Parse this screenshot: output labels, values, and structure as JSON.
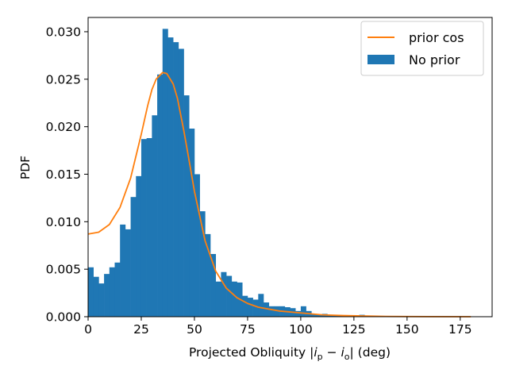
{
  "chart_data": {
    "type": "bar",
    "xlabel": "Projected Obliquity |i_p − i_o| (deg)",
    "xlabel_parts": {
      "pre": "Projected Obliquity |",
      "i1": "i",
      "s1": "p",
      "minus": " − ",
      "i2": "i",
      "s2": "o",
      "post": "| (deg)"
    },
    "ylabel": "PDF",
    "xlim": [
      0,
      190
    ],
    "ylim": [
      0,
      0.0315
    ],
    "xticks": [
      0,
      25,
      50,
      75,
      100,
      125,
      150,
      175
    ],
    "xtick_labels": [
      "0",
      "25",
      "50",
      "75",
      "100",
      "125",
      "150",
      "175"
    ],
    "yticks": [
      0.0,
      0.005,
      0.01,
      0.015,
      0.02,
      0.025,
      0.03
    ],
    "ytick_labels": [
      "0.000",
      "0.005",
      "0.010",
      "0.015",
      "0.020",
      "0.025",
      "0.030"
    ],
    "legend_position": "upper-right",
    "histogram": {
      "name": "No prior",
      "color": "#1f77b4",
      "bin_width": 2.5,
      "x0": 0,
      "values": [
        0.0052,
        0.0042,
        0.0035,
        0.0045,
        0.0052,
        0.0057,
        0.0097,
        0.0092,
        0.0126,
        0.0148,
        0.0187,
        0.0188,
        0.0212,
        0.0255,
        0.0303,
        0.0294,
        0.0289,
        0.0282,
        0.0233,
        0.0198,
        0.015,
        0.0111,
        0.0087,
        0.0066,
        0.0037,
        0.0047,
        0.0043,
        0.0037,
        0.0036,
        0.0022,
        0.002,
        0.0018,
        0.0024,
        0.0015,
        0.0011,
        0.0011,
        0.0011,
        0.001,
        0.0009,
        0.0006,
        0.0011,
        0.0006,
        0.0003,
        0.0002,
        0.0003,
        0.0002,
        0.0002,
        0.0001,
        0.0001,
        0.0001,
        0.0001,
        0.0002,
        0.0001
      ]
    },
    "curve": {
      "name": "prior cos",
      "color": "#ff7f0e",
      "x": [
        0,
        5,
        10,
        15,
        20,
        25,
        28,
        30,
        32,
        35,
        37,
        40,
        42,
        45,
        48,
        50,
        55,
        60,
        65,
        70,
        75,
        80,
        90,
        100,
        110,
        120,
        140,
        160,
        180
      ],
      "y": [
        0.0087,
        0.0089,
        0.0097,
        0.0115,
        0.0146,
        0.0192,
        0.0222,
        0.0239,
        0.025,
        0.0257,
        0.0256,
        0.0245,
        0.023,
        0.0196,
        0.0158,
        0.0132,
        0.008,
        0.0048,
        0.003,
        0.002,
        0.0014,
        0.001,
        0.0006,
        0.0004,
        0.0002,
        0.00012,
        3e-05,
        1e-05,
        0.0
      ]
    }
  }
}
